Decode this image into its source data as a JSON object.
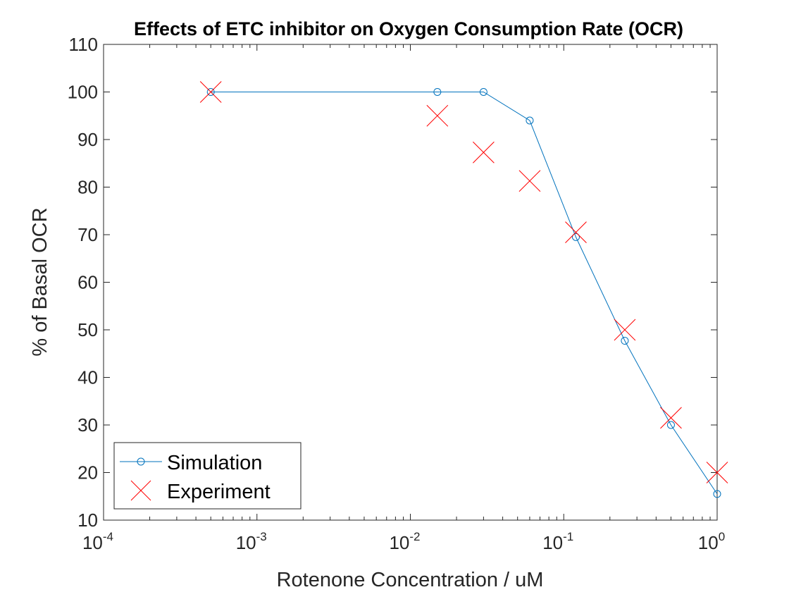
{
  "chart_data": {
    "type": "line",
    "title": "Effects of ETC inhibitor on Oxygen Consumption Rate (OCR)",
    "xlabel": "Rotenone Concentration / uM",
    "ylabel": "% of Basal OCR",
    "xscale": "log",
    "xlim": [
      0.0001,
      1
    ],
    "ylim": [
      10,
      110
    ],
    "yticks": [
      10,
      20,
      30,
      40,
      50,
      60,
      70,
      80,
      90,
      100,
      110
    ],
    "xticks": [
      {
        "base": "10",
        "exp": "-4"
      },
      {
        "base": "10",
        "exp": "-3"
      },
      {
        "base": "10",
        "exp": "-2"
      },
      {
        "base": "10",
        "exp": "-1"
      },
      {
        "base": "10",
        "exp": "0"
      }
    ],
    "grid": false,
    "legend_position": "bottom-left",
    "series": [
      {
        "name": "Simulation",
        "style": "line-circle",
        "color": "#0072BD",
        "x": [
          0.0005,
          0.015,
          0.03,
          0.06,
          0.12,
          0.25,
          0.5,
          1.0
        ],
        "y": [
          100,
          100,
          100,
          94,
          69.5,
          47.7,
          30,
          15.5
        ]
      },
      {
        "name": "Experiment",
        "style": "cross",
        "color": "#FF0000",
        "x": [
          0.0005,
          0.015,
          0.03,
          0.06,
          0.12,
          0.25,
          0.5,
          1.0
        ],
        "y": [
          100,
          95,
          87.3,
          81.3,
          70.5,
          50,
          31.5,
          20
        ]
      }
    ]
  }
}
